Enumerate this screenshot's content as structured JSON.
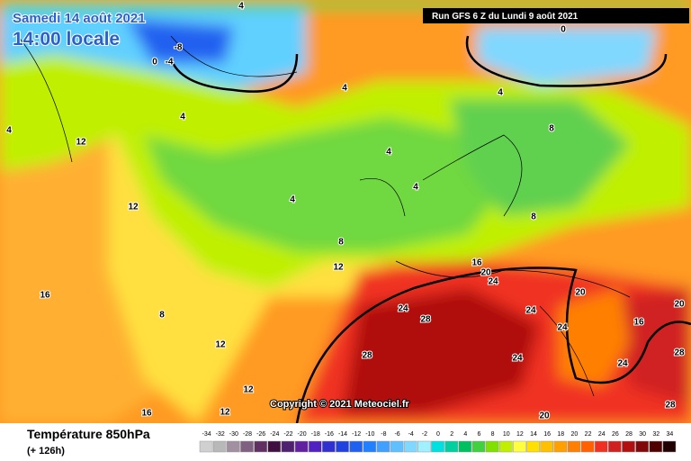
{
  "header": {
    "date": "Samedi 14 août 2021",
    "time": "14:00 locale",
    "run": "Run GFS 6 Z du Lundi 9 août 2021"
  },
  "copyright": "Copyright © 2021 Meteociel.fr",
  "footer": {
    "title": "Température 850hPa",
    "lead": "(+ 126h)"
  },
  "scale": {
    "ticks": [
      -34,
      -32,
      -30,
      -28,
      -26,
      -24,
      -22,
      -20,
      -18,
      -16,
      -14,
      -12,
      -10,
      -8,
      -6,
      -4,
      -2,
      0,
      2,
      4,
      6,
      8,
      10,
      12,
      14,
      16,
      18,
      20,
      22,
      24,
      26,
      28,
      30,
      32,
      34
    ],
    "colors": [
      "#d0d0d0",
      "#b8b8b8",
      "#a090a0",
      "#806080",
      "#603060",
      "#401040",
      "#502070",
      "#6020a0",
      "#5020c0",
      "#3030d0",
      "#2040e0",
      "#2060f0",
      "#2080ff",
      "#40a0ff",
      "#60c0ff",
      "#80d8ff",
      "#a0f0ff",
      "#00e0e0",
      "#00d0a0",
      "#00c060",
      "#40d040",
      "#80e000",
      "#c0f000",
      "#ffff40",
      "#ffe000",
      "#ffc000",
      "#ffa000",
      "#ff8000",
      "#ff6000",
      "#f03020",
      "#d02020",
      "#b01010",
      "#800808",
      "#500000",
      "#200000"
    ]
  },
  "contour_labels": [
    -8,
    -4,
    0,
    0,
    4,
    4,
    4,
    4,
    4,
    4,
    4,
    4,
    8,
    8,
    8,
    8,
    12,
    12,
    12,
    12,
    12,
    12,
    16,
    16,
    16,
    16,
    20,
    20,
    20,
    20,
    24,
    24,
    24,
    24,
    24,
    24,
    28,
    28,
    28,
    28
  ]
}
